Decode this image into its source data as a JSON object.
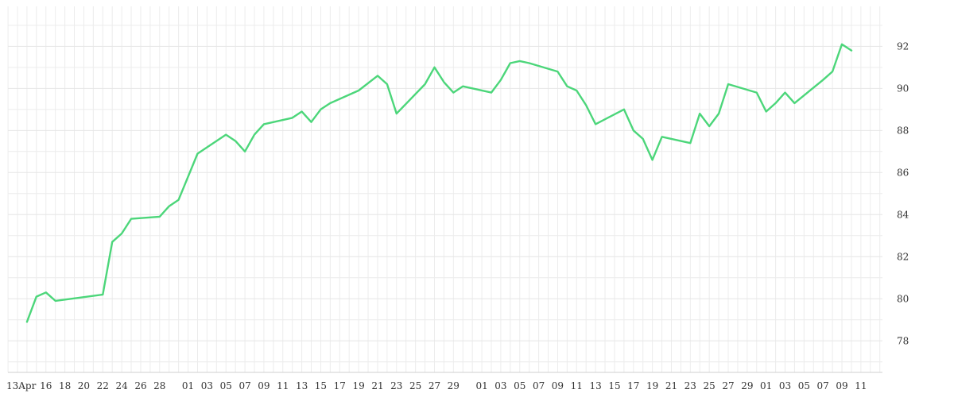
{
  "chart_data": {
    "type": "line",
    "title": "",
    "xlabel": "",
    "ylabel": "",
    "ylim": [
      76.5,
      93.9
    ],
    "y_ticks": [
      78,
      80,
      82,
      84,
      86,
      88,
      90,
      92
    ],
    "grid": true,
    "y_axis_position": "right",
    "x_tick_labels": [
      "13Apr",
      "16",
      "18",
      "20",
      "22",
      "24",
      "26",
      "28",
      "01",
      "03",
      "05",
      "07",
      "09",
      "11",
      "13",
      "15",
      "17",
      "19",
      "21",
      "23",
      "25",
      "27",
      "29",
      "01",
      "03",
      "05",
      "07",
      "09",
      "11",
      "13",
      "15",
      "17",
      "19",
      "21",
      "23",
      "25",
      "27",
      "29",
      "01",
      "03",
      "05",
      "07",
      "09",
      "11"
    ],
    "series": [
      {
        "color": "#4cd67a",
        "x": [
          "2015-04-14",
          "2015-04-15",
          "2015-04-16",
          "2015-04-17",
          "2015-04-22",
          "2015-04-23",
          "2015-04-24",
          "2015-04-25",
          "2015-04-28",
          "2015-04-29",
          "2015-04-30",
          "2015-05-02",
          "2015-05-05",
          "2015-05-06",
          "2015-05-07",
          "2015-05-08",
          "2015-05-09",
          "2015-05-12",
          "2015-05-13",
          "2015-05-14",
          "2015-05-15",
          "2015-05-16",
          "2015-05-19",
          "2015-05-21",
          "2015-05-22",
          "2015-05-23",
          "2015-05-26",
          "2015-05-27",
          "2015-05-28",
          "2015-05-29",
          "2015-05-30",
          "2015-06-02",
          "2015-06-03",
          "2015-06-04",
          "2015-06-05",
          "2015-06-06",
          "2015-06-09",
          "2015-06-10",
          "2015-06-11",
          "2015-06-12",
          "2015-06-13",
          "2015-06-16",
          "2015-06-17",
          "2015-06-18",
          "2015-06-19",
          "2015-06-20",
          "2015-06-23",
          "2015-06-24",
          "2015-06-25",
          "2015-06-26",
          "2015-06-27",
          "2015-06-30",
          "2015-07-01",
          "2015-07-02",
          "2015-07-03",
          "2015-07-04",
          "2015-07-07",
          "2015-07-08",
          "2015-07-09",
          "2015-07-10"
        ],
        "y": [
          78.9,
          80.1,
          80.3,
          79.9,
          80.2,
          82.7,
          83.1,
          83.8,
          83.9,
          84.4,
          84.7,
          86.9,
          87.8,
          87.5,
          87.0,
          87.8,
          88.3,
          88.6,
          88.9,
          88.4,
          89.0,
          89.3,
          89.9,
          90.6,
          90.2,
          88.8,
          90.2,
          91.0,
          90.3,
          89.8,
          90.1,
          89.8,
          90.4,
          91.2,
          91.3,
          91.2,
          90.8,
          90.1,
          89.9,
          89.2,
          88.3,
          89.0,
          88.0,
          87.6,
          86.6,
          87.7,
          87.4,
          88.8,
          88.2,
          88.8,
          90.2,
          89.8,
          88.9,
          89.3,
          89.8,
          89.3,
          90.4,
          90.8,
          92.1,
          91.8
        ]
      }
    ]
  }
}
